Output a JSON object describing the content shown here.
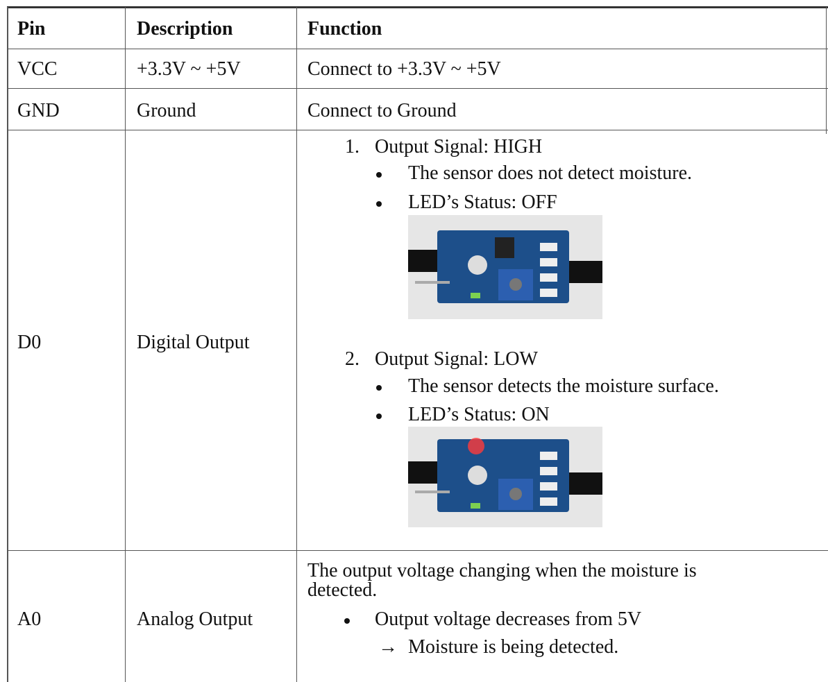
{
  "table": {
    "header": [
      "Pin",
      "Description",
      "Function"
    ],
    "rows": [
      {
        "pin": "VCC",
        "description": "+3.3V ~ +5V",
        "function": "Connect to +3.3V ~ +5V"
      },
      {
        "pin": "GND",
        "description": "Ground",
        "function": "Connect to Ground"
      },
      {
        "pin": "D0",
        "description": "Digital Output",
        "function": {
          "items": [
            {
              "number": "1.",
              "title": "Output Signal: HIGH",
              "bullets": [
                "The sensor does not detect moisture.",
                "LED’s Status: OFF"
              ]
            },
            {
              "number": "2.",
              "title": "Output Signal: LOW",
              "bullets": [
                "The sensor detects the moisture surface.",
                "LED’s Status: ON"
              ]
            }
          ]
        }
      },
      {
        "pin": "A0",
        "description": "Analog Output",
        "function": {
          "lines": [
            "The output voltage changing when the moisture is",
            "detected."
          ],
          "bullet": "Output voltage decreases from 5V",
          "arrow": "→",
          "result": "Moisture is being detected."
        }
      }
    ]
  }
}
